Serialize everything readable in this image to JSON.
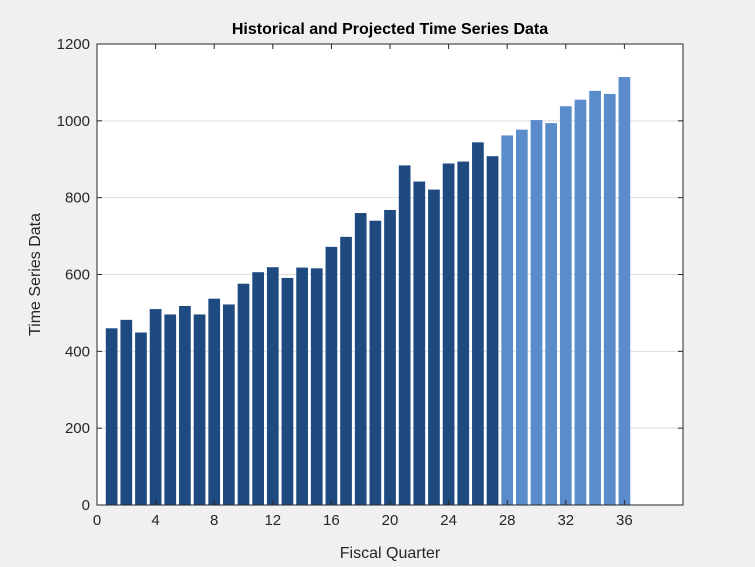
{
  "chart_data": {
    "type": "bar",
    "title": "Historical and Projected Time Series Data",
    "xlabel": "Fiscal Quarter",
    "ylabel": "Time Series Data",
    "xlim": [
      0,
      40
    ],
    "ylim": [
      0,
      1200
    ],
    "xticks": [
      0,
      4,
      8,
      12,
      16,
      20,
      24,
      28,
      32,
      36
    ],
    "yticks": [
      0,
      200,
      400,
      600,
      800,
      1000,
      1200
    ],
    "grid": "horizontal",
    "legend": "none",
    "series": [
      {
        "x": [
          1,
          2,
          3,
          4,
          5,
          6,
          7,
          8,
          9,
          10,
          11,
          12,
          13,
          14,
          15,
          16,
          17,
          18,
          19,
          20,
          21,
          22,
          23,
          24,
          25,
          26,
          27
        ],
        "values": [
          460,
          482,
          449,
          510,
          496,
          518,
          496,
          537,
          522,
          576,
          606,
          619,
          591,
          618,
          616,
          672,
          698,
          760,
          740,
          768,
          884,
          842,
          821,
          889,
          894,
          944,
          908
        ],
        "color": "#1f4a80"
      },
      {
        "x": [
          28,
          29,
          30,
          31,
          32,
          33,
          34,
          35,
          36
        ],
        "values": [
          962,
          977,
          1002,
          994,
          1038,
          1055,
          1078,
          1070,
          1114
        ],
        "color": "#5a8ccb"
      }
    ]
  },
  "colors": {
    "background": "#f0f0f0",
    "plot_area": "#ffffff",
    "axis": "#262626",
    "grid": "#dcdcdc"
  }
}
